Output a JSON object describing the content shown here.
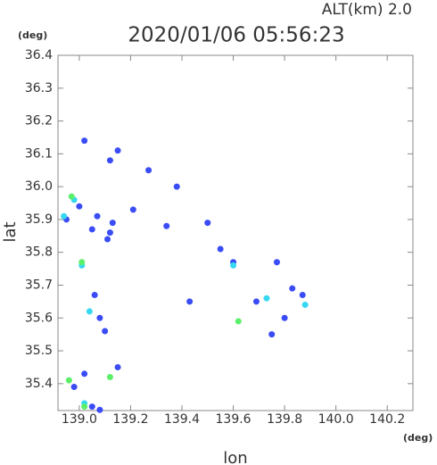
{
  "chart_data": {
    "type": "scatter",
    "title": "2020/01/06 05:56:23",
    "subtitle": "ALT(km)  2.0",
    "x_label": "lon",
    "y_label": "lat",
    "x_unit": "(deg)",
    "y_unit": "(deg)",
    "xlim": [
      138.917,
      140.3
    ],
    "ylim": [
      35.318,
      36.4
    ],
    "xticks": [
      {
        "value": 139,
        "label": "139.0"
      },
      139.2,
      139.4,
      139.6,
      139.8,
      {
        "value": 140,
        "label": "140.0"
      },
      140.2
    ],
    "yticks": [
      35.4,
      35.5,
      35.6,
      35.7,
      35.8,
      35.9,
      {
        "value": 36,
        "label": "36.0"
      },
      36.1,
      36.2,
      36.3,
      36.4
    ],
    "x": [
      139.02,
      139.15,
      139.12,
      139.27,
      139.38,
      139.07,
      139.21,
      139.13,
      139.05,
      139.11,
      139.34,
      139.5,
      139.55,
      139.6,
      139.77,
      139.43,
      139.69,
      139.83,
      139.87,
      139.8,
      139.75,
      139.08,
      139.06,
      139.1,
      139.15,
      139.02,
      138.98,
      139.05,
      139.08,
      138.95,
      139.0,
      139.12,
      138.98,
      138.94,
      139.01,
      139.6,
      139.73,
      139.88,
      139.04,
      139.02,
      138.97,
      139.01,
      138.96,
      139.12,
      139.62,
      139.02
    ],
    "values": [
      36.14,
      36.11,
      36.08,
      36.05,
      36.0,
      35.91,
      35.93,
      35.89,
      35.87,
      35.84,
      35.88,
      35.89,
      35.81,
      35.77,
      35.77,
      35.65,
      35.65,
      35.69,
      35.67,
      35.6,
      35.55,
      35.6,
      35.67,
      35.56,
      35.45,
      35.43,
      35.39,
      35.33,
      35.32,
      35.9,
      35.94,
      35.86,
      35.96,
      35.91,
      35.76,
      35.76,
      35.66,
      35.64,
      35.62,
      35.34,
      35.97,
      35.77,
      35.41,
      35.42,
      35.59,
      35.33
    ],
    "colors": [
      "#3a4cf5",
      "#3a4cf5",
      "#3a4cf5",
      "#3a4cf5",
      "#3a4cf5",
      "#3a4cf5",
      "#3a4cf5",
      "#3a4cf5",
      "#3a4cf5",
      "#3a4cf5",
      "#3a4cf5",
      "#3a4cf5",
      "#3a4cf5",
      "#3a4cf5",
      "#3a4cf5",
      "#3a4cf5",
      "#3a4cf5",
      "#3a4cf5",
      "#3a4cf5",
      "#3a4cf5",
      "#3a4cf5",
      "#3a4cf5",
      "#3a4cf5",
      "#3a4cf5",
      "#3a4cf5",
      "#3a4cf5",
      "#3a4cf5",
      "#3a4cf5",
      "#3a4cf5",
      "#3a4cf5",
      "#3a4cf5",
      "#3a4cf5",
      "#36d8f0",
      "#36d8f0",
      "#36d8f0",
      "#36d8f0",
      "#36d8f0",
      "#36d8f0",
      "#36d8f0",
      "#36d8f0",
      "#5cf06a",
      "#5cf06a",
      "#5cf06a",
      "#5cf06a",
      "#5cf06a",
      "#5cf06a"
    ]
  }
}
